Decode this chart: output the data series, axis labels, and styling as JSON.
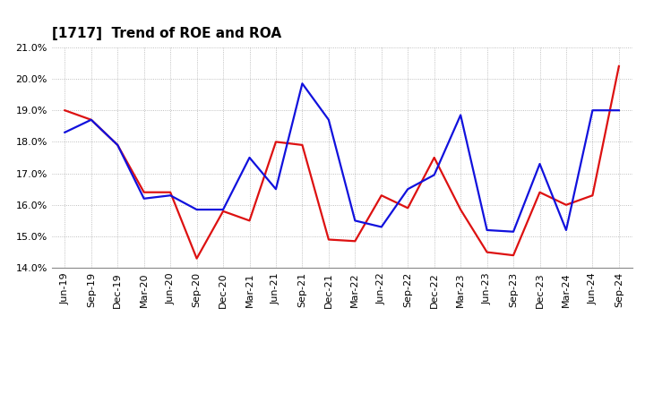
{
  "title": "[1717]  Trend of ROE and ROA",
  "x_labels": [
    "Jun-19",
    "Sep-19",
    "Dec-19",
    "Mar-20",
    "Jun-20",
    "Sep-20",
    "Dec-20",
    "Mar-21",
    "Jun-21",
    "Sep-21",
    "Dec-21",
    "Mar-22",
    "Jun-22",
    "Sep-22",
    "Dec-22",
    "Mar-23",
    "Jun-23",
    "Sep-23",
    "Dec-23",
    "Mar-24",
    "Jun-24",
    "Sep-24"
  ],
  "roe": [
    19.0,
    18.7,
    17.9,
    16.4,
    16.4,
    14.3,
    15.8,
    15.5,
    18.0,
    17.9,
    14.9,
    14.85,
    16.3,
    15.9,
    17.5,
    15.85,
    14.5,
    14.4,
    16.4,
    16.0,
    16.3,
    20.4
  ],
  "roa": [
    18.3,
    18.7,
    17.9,
    16.2,
    16.3,
    15.85,
    15.85,
    17.5,
    16.5,
    19.85,
    18.7,
    15.5,
    15.3,
    16.5,
    16.95,
    18.85,
    15.2,
    15.15,
    17.3,
    15.2,
    19.0,
    19.0
  ],
  "roe_color": "#dd1111",
  "roa_color": "#1111dd",
  "ylim": [
    14.0,
    21.0
  ],
  "yticks": [
    14.0,
    15.0,
    16.0,
    17.0,
    18.0,
    19.0,
    20.0,
    21.0
  ],
  "background_color": "#ffffff",
  "grid_color": "#999999",
  "title_fontsize": 11,
  "legend_fontsize": 10,
  "tick_fontsize": 8,
  "line_width": 1.6
}
